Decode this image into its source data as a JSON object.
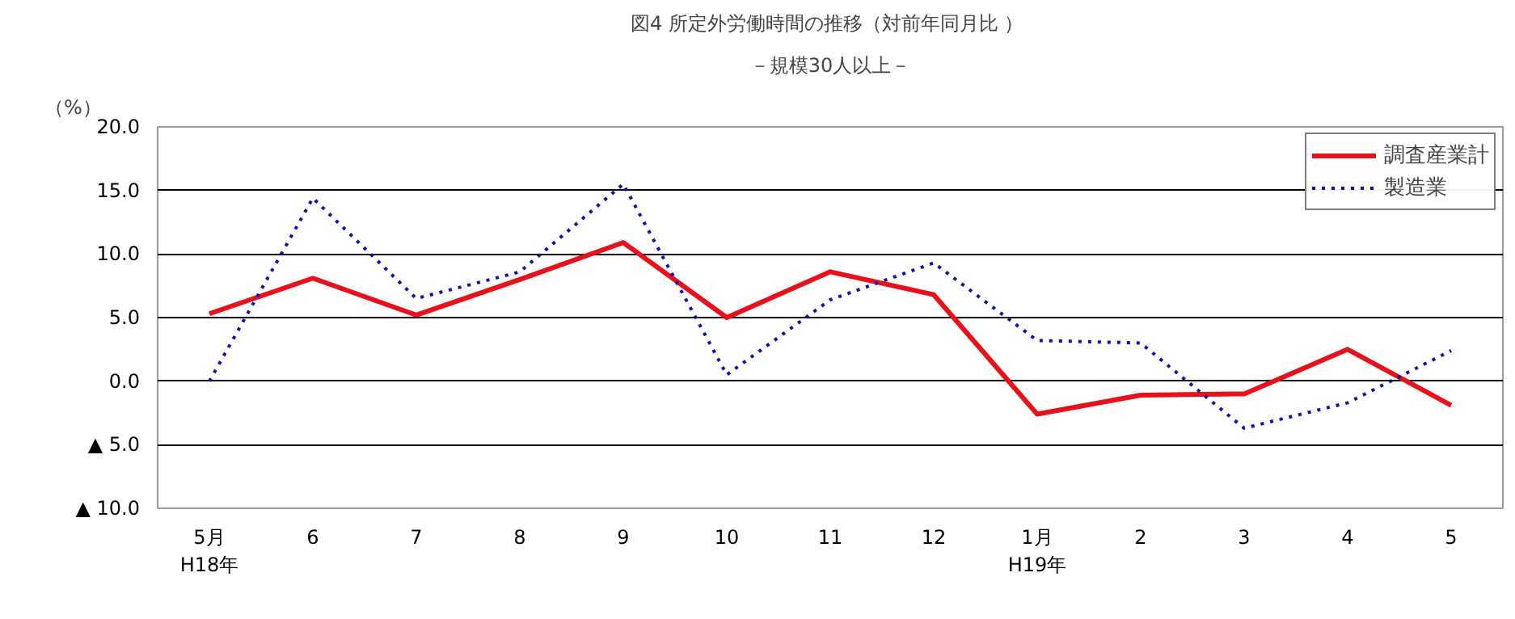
{
  "chart_data": {
    "type": "line",
    "title": "図4  所定外労働時間の推移（対前年同月比 ）",
    "subtitle": "－規模30人以上－",
    "ylabel": "（%）",
    "categories": [
      "5月\nH18年",
      "6",
      "7",
      "8",
      "9",
      "10",
      "11",
      "12",
      "1月\nH19年",
      "2",
      "3",
      "4",
      "5"
    ],
    "series": [
      {
        "name": "調査産業計",
        "color": "#e8101a",
        "line_style": "solid",
        "values": [
          5.3,
          8.1,
          5.2,
          8.0,
          10.9,
          5.0,
          8.6,
          6.8,
          -2.6,
          -1.1,
          -1.0,
          2.5,
          -1.9
        ]
      },
      {
        "name": "製造業",
        "color": "#1010b0",
        "line_style": "dotted",
        "values": [
          0.0,
          14.4,
          6.5,
          8.6,
          15.5,
          0.5,
          6.4,
          9.3,
          3.2,
          3.0,
          -3.7,
          -1.7,
          2.4
        ]
      }
    ],
    "ylim": [
      -10,
      20
    ],
    "yticks": [
      {
        "value": -10,
        "label": "▲ 10.0"
      },
      {
        "value": -5,
        "label": "▲ 5.0"
      },
      {
        "value": 0,
        "label": "0.0"
      },
      {
        "value": 5,
        "label": "5.0"
      },
      {
        "value": 10,
        "label": "10.0"
      },
      {
        "value": 15,
        "label": "15.0"
      },
      {
        "value": 20,
        "label": "20.0"
      }
    ],
    "grid": "y",
    "legend": "top right",
    "marker": "none"
  }
}
